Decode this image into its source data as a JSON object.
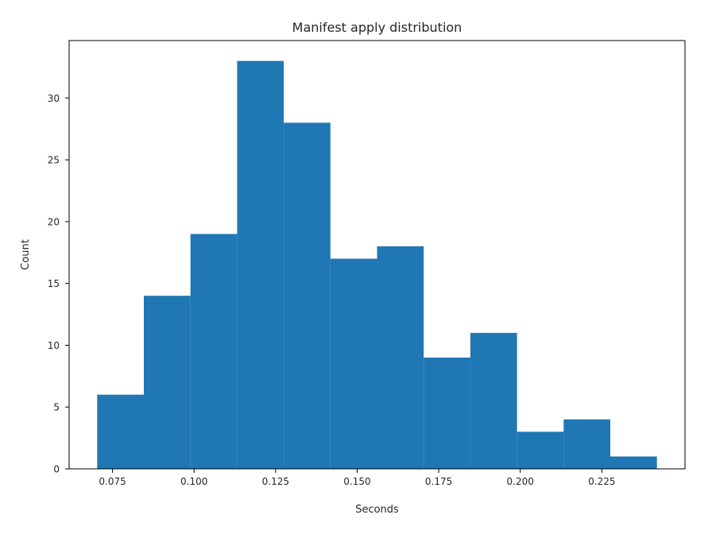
{
  "chart_data": {
    "type": "bar",
    "title": "Manifest apply distribution",
    "xlabel": "Seconds",
    "ylabel": "Count",
    "bin_edges": [
      0.0703,
      0.0846,
      0.0989,
      0.1132,
      0.1275,
      0.1418,
      0.1561,
      0.1704,
      0.1847,
      0.199,
      0.2133,
      0.2276,
      0.2419
    ],
    "values": [
      6,
      14,
      19,
      33,
      28,
      17,
      18,
      9,
      11,
      3,
      4,
      1
    ],
    "xlim": [
      0.0617,
      0.2505
    ],
    "ylim": [
      0,
      34.65
    ],
    "x_ticks": [
      0.075,
      0.1,
      0.125,
      0.15,
      0.175,
      0.2,
      0.225
    ],
    "x_tick_labels": [
      "0.075",
      "0.100",
      "0.125",
      "0.150",
      "0.175",
      "0.200",
      "0.225"
    ],
    "y_ticks": [
      0,
      5,
      10,
      15,
      20,
      25,
      30
    ],
    "y_tick_labels": [
      "0",
      "5",
      "10",
      "15",
      "20",
      "25",
      "30"
    ],
    "bar_color": "#1f77b4",
    "grid": false,
    "legend": "none"
  }
}
